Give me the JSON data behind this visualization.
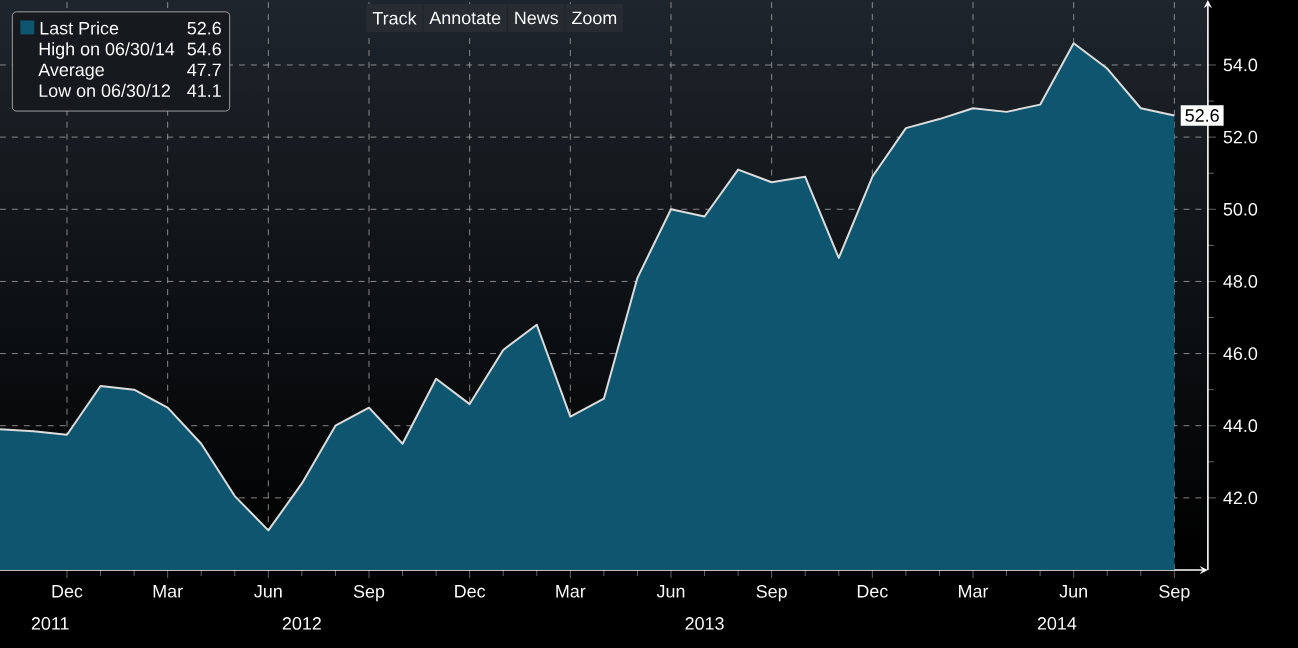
{
  "chart_data": {
    "type": "area",
    "x": [
      "2011-10",
      "2011-11",
      "2011-12",
      "2012-01",
      "2012-02",
      "2012-03",
      "2012-04",
      "2012-05",
      "2012-06",
      "2012-07",
      "2012-08",
      "2012-09",
      "2012-10",
      "2012-11",
      "2012-12",
      "2013-01",
      "2013-02",
      "2013-03",
      "2013-04",
      "2013-05",
      "2013-06",
      "2013-07",
      "2013-08",
      "2013-09",
      "2013-10",
      "2013-11",
      "2013-12",
      "2014-01",
      "2014-02",
      "2014-03",
      "2014-04",
      "2014-05",
      "2014-06",
      "2014-07",
      "2014-08",
      "2014-09"
    ],
    "series": [
      {
        "name": "Last Price",
        "color": "#0e5670",
        "values": [
          43.9,
          43.85,
          43.75,
          45.1,
          45.0,
          44.5,
          43.5,
          42.05,
          41.1,
          42.4,
          44.0,
          44.5,
          43.5,
          45.3,
          44.6,
          46.1,
          46.8,
          44.25,
          44.75,
          48.1,
          50.0,
          49.8,
          51.1,
          50.75,
          50.9,
          48.65,
          50.9,
          52.25,
          52.5,
          52.8,
          52.7,
          52.9,
          54.6,
          53.9,
          52.8,
          52.6
        ],
        "value_labels": [
          null,
          null,
          null,
          null,
          null,
          null,
          null,
          null,
          null,
          null,
          null,
          null,
          null,
          null,
          null,
          null,
          null,
          null,
          null,
          null,
          null,
          null,
          null,
          null,
          null,
          null,
          null,
          null,
          null,
          null,
          null,
          null,
          null,
          null,
          null,
          "52.6"
        ]
      }
    ],
    "xlim": [
      "2011-10",
      "2014-10"
    ],
    "xticks": [
      {
        "value": "2011-12",
        "label": "Dec"
      },
      {
        "value": "2012-03",
        "label": "Mar"
      },
      {
        "value": "2012-06",
        "label": "Jun"
      },
      {
        "value": "2012-09",
        "label": "Sep"
      },
      {
        "value": "2012-12",
        "label": "Dec"
      },
      {
        "value": "2013-03",
        "label": "Mar"
      },
      {
        "value": "2013-06",
        "label": "Jun"
      },
      {
        "value": "2013-09",
        "label": "Sep"
      },
      {
        "value": "2013-12",
        "label": "Dec"
      },
      {
        "value": "2014-03",
        "label": "Mar"
      },
      {
        "value": "2014-06",
        "label": "Jun"
      },
      {
        "value": "2014-09",
        "label": "Sep"
      }
    ],
    "ylim": [
      40,
      55.8
    ],
    "yticks": [
      {
        "value": 42,
        "label": "42.0"
      },
      {
        "value": 44,
        "label": "44.0"
      },
      {
        "value": 46,
        "label": "46.0"
      },
      {
        "value": 48,
        "label": "48.0"
      },
      {
        "value": 50,
        "label": "50.0"
      },
      {
        "value": 52,
        "label": "52.0"
      },
      {
        "value": 54,
        "label": "54.0"
      }
    ],
    "grid": true,
    "legend": "top left",
    "marker": "none",
    "line_style": "solid",
    "annotations": [
      "52.6",
      "High on 06/30/14",
      "54.6",
      "Average",
      "47.7",
      "Low on 06/30/12",
      "41.1",
      "Track",
      "Annotate",
      "News",
      "Zoom",
      "2011",
      "2012",
      "2013",
      "2014"
    ]
  }
}
